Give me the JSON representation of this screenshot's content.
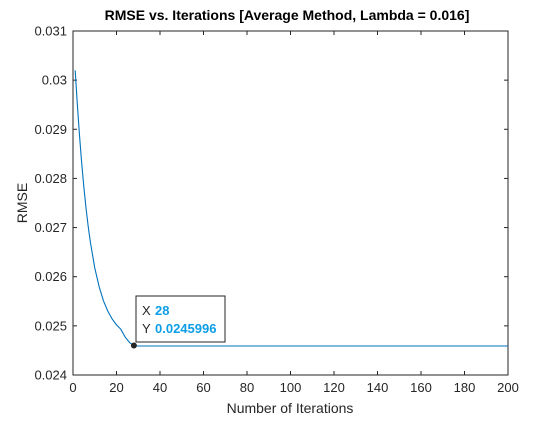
{
  "chart_data": {
    "type": "line",
    "title": "RMSE vs. Iterations [Average Method, Lambda = 0.016]",
    "xlabel": "Number of Iterations",
    "ylabel": "RMSE",
    "xlim": [
      0,
      200
    ],
    "ylim": [
      0.024,
      0.031
    ],
    "xticks": [
      0,
      20,
      40,
      60,
      80,
      100,
      120,
      140,
      160,
      180,
      200
    ],
    "xtick_labels": [
      "0",
      "20",
      "40",
      "60",
      "80",
      "100",
      "120",
      "140",
      "160",
      "180",
      "200"
    ],
    "yticks": [
      0.024,
      0.025,
      0.026,
      0.027,
      0.028,
      0.029,
      0.03,
      0.031
    ],
    "ytick_labels": [
      "0.024",
      "0.025",
      "0.026",
      "0.027",
      "0.028",
      "0.029",
      "0.03",
      "0.031"
    ],
    "grid": false,
    "series": [
      {
        "color": "#0072bd",
        "x": [
          1,
          2,
          3,
          4,
          5,
          6,
          7,
          8,
          10,
          12,
          14,
          16,
          18,
          20,
          22,
          24,
          26,
          28,
          30,
          35,
          40,
          50,
          60,
          80,
          100,
          120,
          140,
          160,
          180,
          200
        ],
        "y": [
          0.0302,
          0.0295,
          0.02887,
          0.02831,
          0.02782,
          0.02739,
          0.02702,
          0.0267,
          0.02618,
          0.0258,
          0.02551,
          0.0253,
          0.02514,
          0.02502,
          0.02493,
          0.02477,
          0.02466,
          0.0245996,
          0.02459,
          0.02459,
          0.02459,
          0.02459,
          0.02459,
          0.02459,
          0.02459,
          0.02459,
          0.02459,
          0.02459,
          0.02459,
          0.02459
        ]
      }
    ],
    "datatip": {
      "x": 28,
      "y": 0.0245996,
      "x_label": "X",
      "y_label": "Y",
      "x_text": "28",
      "y_text": "0.0245996",
      "value_color": "#0d9ee6"
    }
  }
}
